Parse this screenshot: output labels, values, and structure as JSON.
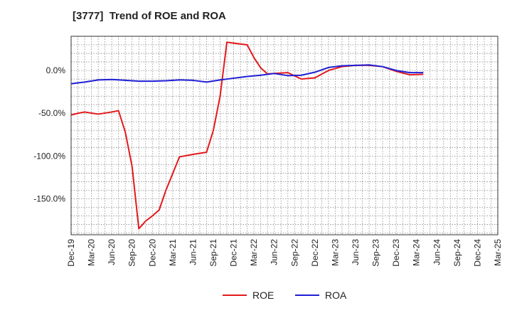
{
  "chart_data": {
    "type": "line",
    "title": "[3777]  Trend of ROE and ROA",
    "xlabel": "",
    "ylabel": "",
    "ylim": [
      -192,
      40
    ],
    "y_ticks": [
      0,
      -50,
      -100,
      -150
    ],
    "y_tick_labels": [
      "0.0%",
      "-50.0%",
      "-100.0%",
      "-150.0%"
    ],
    "x_tick_labels": [
      "Dec-19",
      "Mar-20",
      "Jun-20",
      "Sep-20",
      "Dec-20",
      "Mar-21",
      "Jun-21",
      "Sep-21",
      "Dec-21",
      "Mar-22",
      "Jun-22",
      "Sep-22",
      "Dec-22",
      "Mar-23",
      "Jun-23",
      "Sep-23",
      "Dec-23",
      "Mar-24",
      "Jun-24",
      "Sep-24",
      "Dec-24",
      "Mar-25"
    ],
    "grid": true,
    "legend_position": "bottom-center",
    "series": [
      {
        "name": "ROE",
        "color": "#e31a1c",
        "points": [
          [
            0,
            -52
          ],
          [
            1,
            -50
          ],
          [
            2,
            -48.5
          ],
          [
            4,
            -51
          ],
          [
            6,
            -48.5
          ],
          [
            7,
            -47
          ],
          [
            8,
            -72
          ],
          [
            9,
            -112
          ],
          [
            10,
            -185
          ],
          [
            11,
            -176
          ],
          [
            12,
            -170
          ],
          [
            13,
            -163
          ],
          [
            14,
            -140
          ],
          [
            16,
            -101
          ],
          [
            18,
            -98
          ],
          [
            20,
            -95.5
          ],
          [
            21,
            -70
          ],
          [
            22,
            -30
          ],
          [
            23,
            33
          ],
          [
            24,
            32
          ],
          [
            26,
            30
          ],
          [
            27,
            15
          ],
          [
            28,
            3
          ],
          [
            29,
            -4
          ],
          [
            30,
            -3.5
          ],
          [
            32,
            -2.5
          ],
          [
            34,
            -10
          ],
          [
            36,
            -8.5
          ],
          [
            38,
            0
          ],
          [
            40,
            4.5
          ],
          [
            42,
            6
          ],
          [
            44,
            6
          ],
          [
            46,
            4.5
          ],
          [
            48,
            -1
          ],
          [
            50,
            -5
          ],
          [
            52,
            -4.5
          ]
        ]
      },
      {
        "name": "ROA",
        "color": "#1f1fd6",
        "points": [
          [
            0,
            -15.5
          ],
          [
            1,
            -14.5
          ],
          [
            2,
            -13.5
          ],
          [
            4,
            -11
          ],
          [
            6,
            -10.5
          ],
          [
            8,
            -11.5
          ],
          [
            10,
            -12.5
          ],
          [
            12,
            -12.5
          ],
          [
            14,
            -12
          ],
          [
            16,
            -11
          ],
          [
            18,
            -11.5
          ],
          [
            20,
            -13.5
          ],
          [
            22,
            -11
          ],
          [
            24,
            -9
          ],
          [
            26,
            -7
          ],
          [
            28,
            -5.5
          ],
          [
            30,
            -3.5
          ],
          [
            32,
            -6
          ],
          [
            34,
            -5.5
          ],
          [
            36,
            -2
          ],
          [
            38,
            3.5
          ],
          [
            40,
            5.5
          ],
          [
            42,
            6
          ],
          [
            44,
            6.5
          ],
          [
            46,
            4.5
          ],
          [
            48,
            0
          ],
          [
            50,
            -2.5
          ],
          [
            52,
            -2.5
          ]
        ]
      }
    ]
  }
}
